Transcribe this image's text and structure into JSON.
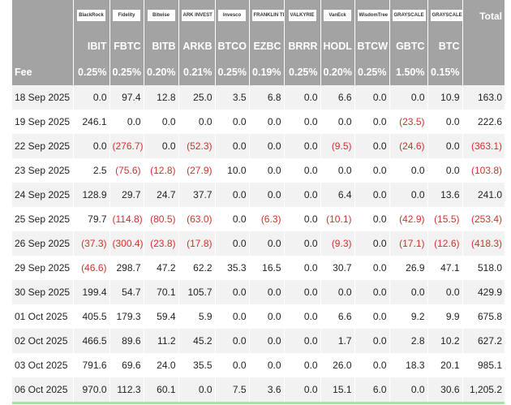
{
  "header": {
    "logos": [
      "BlackRock",
      "Fidelity",
      "Bitwise",
      "ARK INVEST",
      "Invesco",
      "FRANKLIN TEMPLETON",
      "VALKYRIE",
      "VanEck",
      "WisdomTree",
      "GRAYSCALE",
      "GRAYSCALE"
    ],
    "total": "Total",
    "tickers": [
      "IBIT",
      "FBTC",
      "BITB",
      "ARKB",
      "BTCO",
      "EZBC",
      "BRRR",
      "HODL",
      "BTCW",
      "GBTC",
      "BTC"
    ],
    "fee_label": "Fee",
    "fees": [
      "0.25%",
      "0.25%",
      "0.20%",
      "0.21%",
      "0.25%",
      "0.19%",
      "0.25%",
      "0.20%",
      "0.25%",
      "1.50%",
      "0.15%"
    ]
  },
  "rows": [
    [
      "18 Sep 2025",
      "0.0",
      "97.4",
      "12.8",
      "25.0",
      "3.5",
      "6.8",
      "0.0",
      "6.6",
      "0.0",
      "0.0",
      "10.9",
      "163.0"
    ],
    [
      "19 Sep 2025",
      "246.1",
      "0.0",
      "0.0",
      "0.0",
      "0.0",
      "0.0",
      "0.0",
      "0.0",
      "0.0",
      "(23.5)",
      "0.0",
      "222.6"
    ],
    [
      "22 Sep 2025",
      "0.0",
      "(276.7)",
      "0.0",
      "(52.3)",
      "0.0",
      "0.0",
      "0.0",
      "(9.5)",
      "0.0",
      "(24.6)",
      "0.0",
      "(363.1)"
    ],
    [
      "23 Sep 2025",
      "2.5",
      "(75.6)",
      "(12.8)",
      "(27.9)",
      "10.0",
      "0.0",
      "0.0",
      "0.0",
      "0.0",
      "0.0",
      "0.0",
      "(103.8)"
    ],
    [
      "24 Sep 2025",
      "128.9",
      "29.7",
      "24.7",
      "37.7",
      "0.0",
      "0.0",
      "0.0",
      "6.4",
      "0.0",
      "0.0",
      "13.6",
      "241.0"
    ],
    [
      "25 Sep 2025",
      "79.7",
      "(114.8)",
      "(80.5)",
      "(63.0)",
      "0.0",
      "(6.3)",
      "0.0",
      "(10.1)",
      "0.0",
      "(42.9)",
      "(15.5)",
      "(253.4)"
    ],
    [
      "26 Sep 2025",
      "(37.3)",
      "(300.4)",
      "(23.8)",
      "(17.8)",
      "0.0",
      "0.0",
      "0.0",
      "(9.3)",
      "0.0",
      "(17.1)",
      "(12.6)",
      "(418.3)"
    ],
    [
      "29 Sep 2025",
      "(46.6)",
      "298.7",
      "47.2",
      "62.2",
      "35.3",
      "16.5",
      "0.0",
      "30.7",
      "0.0",
      "26.9",
      "47.1",
      "518.0"
    ],
    [
      "30 Sep 2025",
      "199.4",
      "54.7",
      "70.1",
      "105.7",
      "0.0",
      "0.0",
      "0.0",
      "0.0",
      "0.0",
      "0.0",
      "0.0",
      "429.9"
    ],
    [
      "01 Oct 2025",
      "405.5",
      "179.3",
      "59.4",
      "5.9",
      "0.0",
      "0.0",
      "0.0",
      "6.6",
      "0.0",
      "9.2",
      "9.9",
      "675.8"
    ],
    [
      "02 Oct 2025",
      "466.5",
      "89.6",
      "11.2",
      "45.2",
      "0.0",
      "0.0",
      "0.0",
      "1.7",
      "0.0",
      "2.8",
      "10.2",
      "627.2"
    ],
    [
      "03 Oct 2025",
      "791.6",
      "69.6",
      "24.0",
      "35.5",
      "0.0",
      "0.0",
      "0.0",
      "26.0",
      "0.0",
      "18.3",
      "20.1",
      "985.1"
    ],
    [
      "06 Oct 2025",
      "970.0",
      "112.3",
      "60.1",
      "0.0",
      "7.5",
      "3.6",
      "0.0",
      "15.1",
      "6.0",
      "0.0",
      "30.6",
      "1,205.2"
    ]
  ]
}
